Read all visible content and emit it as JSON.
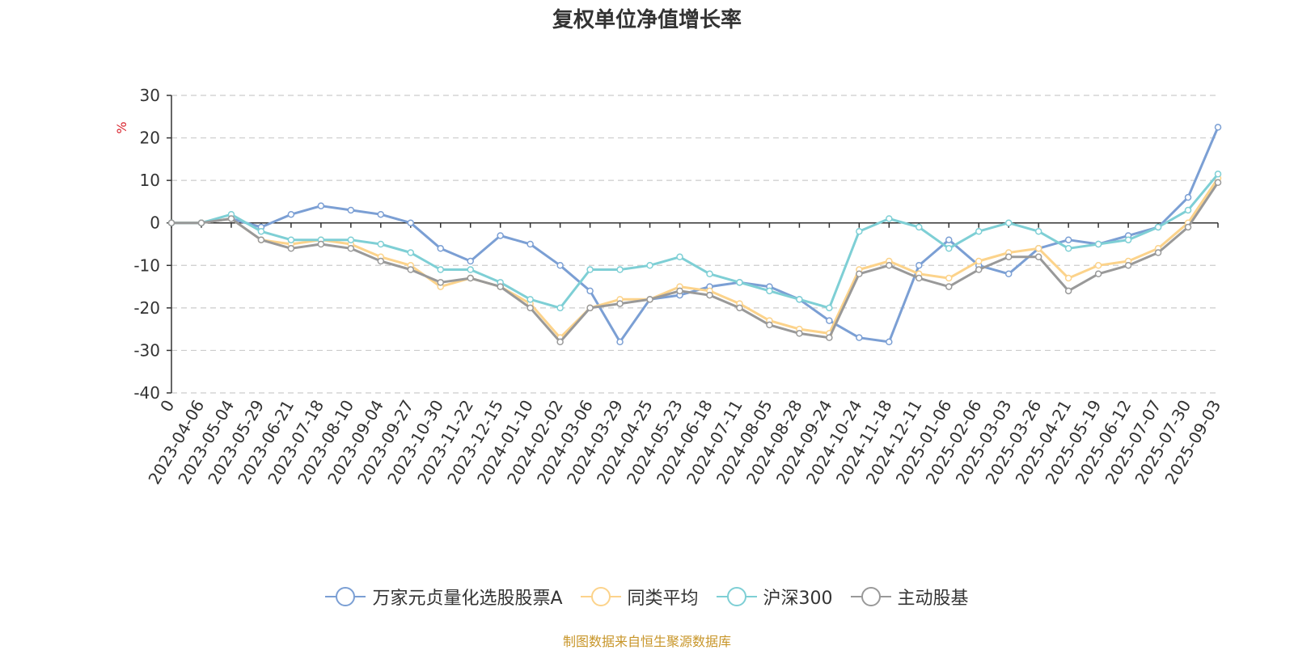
{
  "chart_data": {
    "type": "line",
    "title": "复权单位净值增长率",
    "ylabel": "%",
    "ylim": [
      -40,
      30
    ],
    "yticks": [
      30,
      20,
      10,
      0,
      -10,
      -20,
      -30,
      -40
    ],
    "grid": true,
    "legend_position": "bottom-center",
    "x_tick_labels": [
      "0",
      "2023-04-06",
      "2023-05-04",
      "2023-05-29",
      "2023-06-21",
      "2023-07-18",
      "2023-08-10",
      "2023-09-04",
      "2023-09-27",
      "2023-10-30",
      "2023-11-22",
      "2023-12-15",
      "2024-01-10",
      "2024-02-02",
      "2024-03-06",
      "2024-03-29",
      "2024-04-25",
      "2024-05-23",
      "2024-06-18",
      "2024-07-11",
      "2024-08-05",
      "2024-08-28",
      "2024-09-24",
      "2024-10-24",
      "2024-11-18",
      "2024-12-11",
      "2025-01-06",
      "2025-02-06",
      "2025-03-03",
      "2025-03-26",
      "2025-04-21",
      "2025-05-19",
      "2025-06-12",
      "2025-07-07",
      "2025-07-30",
      "2025-09-03"
    ],
    "series": [
      {
        "name": "万家元贞量化选股股票A",
        "color": "#7b9fd4",
        "values": [
          0,
          0,
          1,
          -1,
          2,
          4,
          3,
          2,
          0,
          -6,
          -9,
          -3,
          -5,
          -10,
          -16,
          -28,
          -18,
          -17,
          -15,
          -14,
          -15,
          -18,
          -23,
          -27,
          -28,
          -10,
          -4,
          -10,
          -12,
          -6,
          -4,
          -5,
          -3,
          -1,
          6,
          22.5
        ]
      },
      {
        "name": "同类平均",
        "color": "#fcd38b",
        "values": [
          0,
          0,
          1,
          -4,
          -5,
          -4,
          -5,
          -8,
          -10,
          -15,
          -13,
          -15,
          -19,
          -27,
          -20,
          -18,
          -18,
          -15,
          -16,
          -19,
          -23,
          -25,
          -26,
          -11,
          -9,
          -12,
          -13,
          -9,
          -7,
          -6,
          -13,
          -10,
          -9,
          -6,
          0,
          10.5
        ]
      },
      {
        "name": "沪深300",
        "color": "#7ecfd5",
        "values": [
          0,
          0,
          2,
          -2,
          -4,
          -4,
          -4,
          -5,
          -7,
          -11,
          -11,
          -14,
          -18,
          -20,
          -11,
          -11,
          -10,
          -8,
          -12,
          -14,
          -16,
          -18,
          -20,
          -2,
          1,
          -1,
          -6,
          -2,
          0,
          -2,
          -6,
          -5,
          -4,
          -1,
          3,
          11.5
        ]
      },
      {
        "name": "主动股基",
        "color": "#999999",
        "values": [
          0,
          0,
          1,
          -4,
          -6,
          -5,
          -6,
          -9,
          -11,
          -14,
          -13,
          -15,
          -20,
          -28,
          -20,
          -19,
          -18,
          -16,
          -17,
          -20,
          -24,
          -26,
          -27,
          -12,
          -10,
          -13,
          -15,
          -11,
          -8,
          -8,
          -16,
          -12,
          -10,
          -7,
          -1,
          9.5
        ]
      }
    ]
  },
  "legend": {
    "items": [
      {
        "label": "万家元贞量化选股股票A",
        "color": "#7b9fd4"
      },
      {
        "label": "同类平均",
        "color": "#fcd38b"
      },
      {
        "label": "沪深300",
        "color": "#7ecfd5"
      },
      {
        "label": "主动股基",
        "color": "#999999"
      }
    ]
  },
  "footer": {
    "source": "制图数据来自恒生聚源数据库"
  },
  "colors": {
    "ylabel": "#d9252f",
    "grid": "#cccccc",
    "axis": "#333333"
  }
}
